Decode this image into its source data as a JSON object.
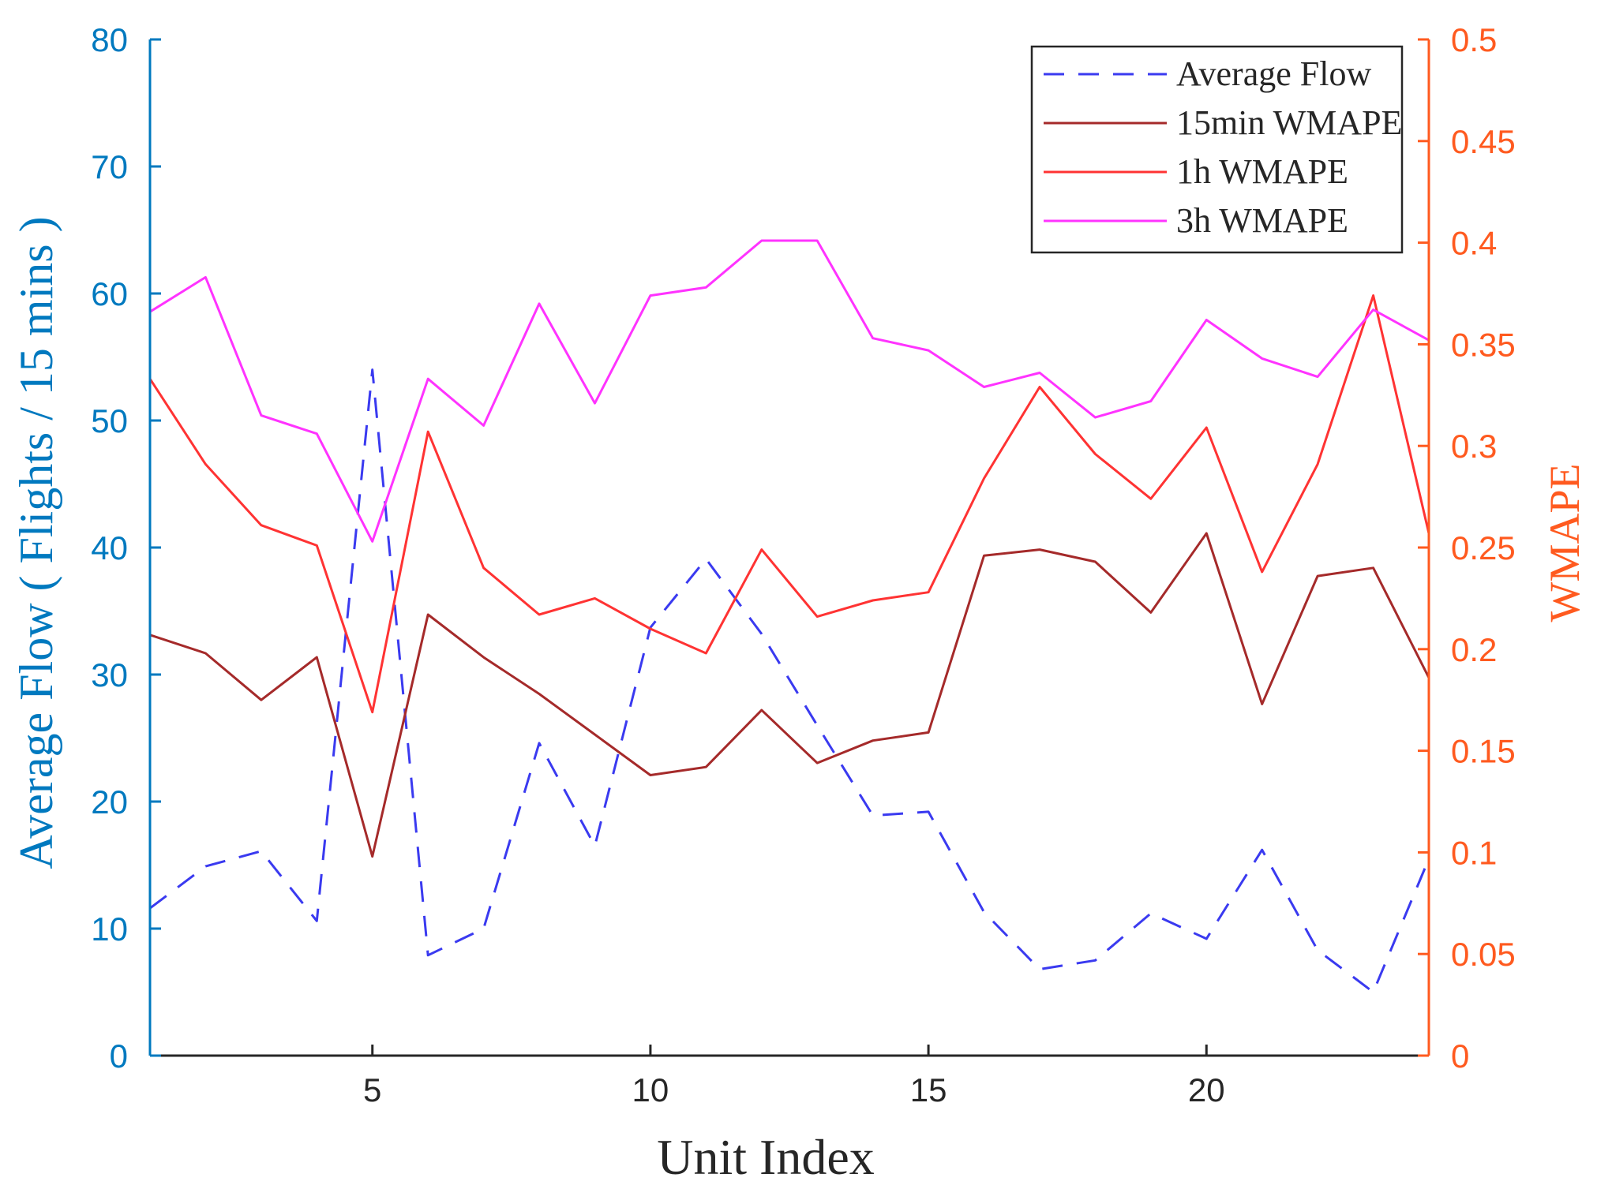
{
  "chart_data": {
    "type": "line",
    "xlabel": "Unit Index",
    "ylabel_left": "Average Flow ( Flights / 15 mins )",
    "ylabel_right": "WMAPE",
    "xlim": [
      1,
      24
    ],
    "ylim_left": [
      0,
      80
    ],
    "ylim_right": [
      0,
      0.5
    ],
    "xticks": [
      5,
      10,
      15,
      20
    ],
    "yticks_left": [
      0,
      10,
      20,
      30,
      40,
      50,
      60,
      70,
      80
    ],
    "yticks_right": [
      "0",
      "0.05",
      "0.1",
      "0.15",
      "0.2",
      "0.25",
      "0.3",
      "0.35",
      "0.4",
      "0.45",
      "0.5"
    ],
    "x": [
      1,
      2,
      3,
      4,
      5,
      6,
      7,
      8,
      9,
      10,
      11,
      12,
      13,
      14,
      15,
      16,
      17,
      18,
      19,
      20,
      21,
      22,
      23,
      24
    ],
    "legend_position": "top-right",
    "colors": {
      "left_axis": "#0079bf",
      "right_axis": "#ff5a1f",
      "axis_dark": "#262626"
    },
    "series": [
      {
        "name": "Average Flow",
        "axis": "left",
        "style": "dashed",
        "color": "#3a3af0",
        "values": [
          11.6,
          14.9,
          16.1,
          10.6,
          54.0,
          7.9,
          10.0,
          24.6,
          16.5,
          33.7,
          39.1,
          33.2,
          26.0,
          18.9,
          19.2,
          11.3,
          6.8,
          7.5,
          11.2,
          9.2,
          16.2,
          8.3,
          5.0,
          15.5
        ]
      },
      {
        "name": "15min WMAPE",
        "axis": "right",
        "style": "solid",
        "color": "#a52a2a",
        "values": [
          0.207,
          0.198,
          0.175,
          0.196,
          0.098,
          0.217,
          0.196,
          0.178,
          0.158,
          0.138,
          0.142,
          0.17,
          0.144,
          0.155,
          0.159,
          0.246,
          0.249,
          0.243,
          0.218,
          0.257,
          0.173,
          0.236,
          0.24,
          0.186
        ]
      },
      {
        "name": "1h WMAPE",
        "axis": "right",
        "style": "solid",
        "color": "#ff3333",
        "values": [
          0.333,
          0.291,
          0.261,
          0.251,
          0.169,
          0.307,
          0.24,
          0.217,
          0.225,
          0.21,
          0.198,
          0.249,
          0.216,
          0.224,
          0.228,
          0.284,
          0.329,
          0.296,
          0.274,
          0.309,
          0.238,
          0.291,
          0.374,
          0.257
        ]
      },
      {
        "name": "3h WMAPE",
        "axis": "right",
        "style": "solid",
        "color": "#ff33ff",
        "values": [
          0.366,
          0.383,
          0.315,
          0.306,
          0.253,
          0.333,
          0.31,
          0.37,
          0.321,
          0.374,
          0.378,
          0.401,
          0.401,
          0.353,
          0.347,
          0.329,
          0.336,
          0.314,
          0.322,
          0.362,
          0.343,
          0.334,
          0.367,
          0.352
        ]
      }
    ]
  }
}
